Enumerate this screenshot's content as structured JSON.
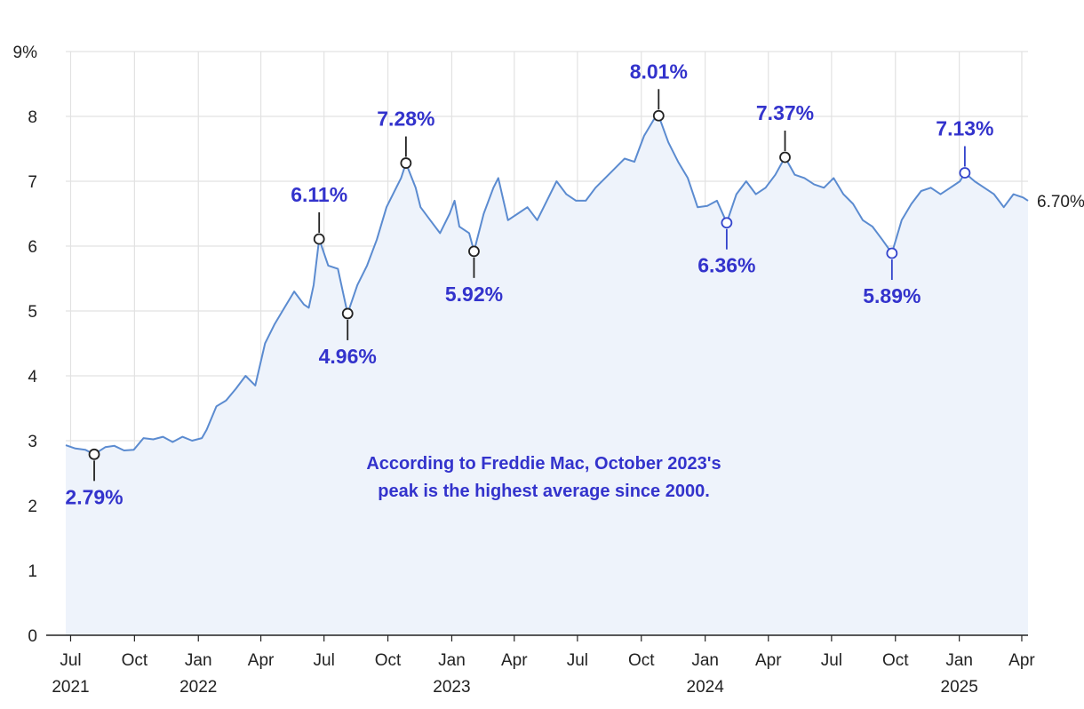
{
  "chart_data": {
    "type": "area",
    "title": "",
    "xlabel": "",
    "ylabel": "",
    "ylim": [
      0,
      9
    ],
    "xlim": [
      "2021-06-24",
      "2025-04-10"
    ],
    "y_ticks": [
      {
        "value": 0,
        "label": "0"
      },
      {
        "value": 1,
        "label": "1"
      },
      {
        "value": 2,
        "label": "2"
      },
      {
        "value": 3,
        "label": "3"
      },
      {
        "value": 4,
        "label": "4"
      },
      {
        "value": 5,
        "label": "5"
      },
      {
        "value": 6,
        "label": "6"
      },
      {
        "value": 7,
        "label": "7"
      },
      {
        "value": 8,
        "label": "8"
      },
      {
        "value": 9,
        "label": "9%"
      }
    ],
    "x_ticks": [
      {
        "date": "2021-07-01",
        "label": "Jul",
        "year": "2021"
      },
      {
        "date": "2021-10-01",
        "label": "Oct",
        "year": ""
      },
      {
        "date": "2022-01-01",
        "label": "Jan",
        "year": "2022"
      },
      {
        "date": "2022-04-01",
        "label": "Apr",
        "year": ""
      },
      {
        "date": "2022-07-01",
        "label": "Jul",
        "year": ""
      },
      {
        "date": "2022-10-01",
        "label": "Oct",
        "year": ""
      },
      {
        "date": "2023-01-01",
        "label": "Jan",
        "year": "2023"
      },
      {
        "date": "2023-04-01",
        "label": "Apr",
        "year": ""
      },
      {
        "date": "2023-07-01",
        "label": "Jul",
        "year": ""
      },
      {
        "date": "2023-10-01",
        "label": "Oct",
        "year": ""
      },
      {
        "date": "2024-01-01",
        "label": "Jan",
        "year": "2024"
      },
      {
        "date": "2024-04-01",
        "label": "Apr",
        "year": ""
      },
      {
        "date": "2024-07-01",
        "label": "Jul",
        "year": ""
      },
      {
        "date": "2024-10-01",
        "label": "Oct",
        "year": ""
      },
      {
        "date": "2025-01-01",
        "label": "Jan",
        "year": "2025"
      },
      {
        "date": "2025-04-01",
        "label": "Apr",
        "year": ""
      }
    ],
    "grid": true,
    "series": [
      {
        "points": [
          [
            "2021-06-24",
            2.93
          ],
          [
            "2021-07-08",
            2.88
          ],
          [
            "2021-07-22",
            2.86
          ],
          [
            "2021-08-04",
            2.79
          ],
          [
            "2021-08-20",
            2.9
          ],
          [
            "2021-09-02",
            2.92
          ],
          [
            "2021-09-16",
            2.85
          ],
          [
            "2021-09-30",
            2.86
          ],
          [
            "2021-10-14",
            3.04
          ],
          [
            "2021-10-28",
            3.02
          ],
          [
            "2021-11-11",
            3.06
          ],
          [
            "2021-11-25",
            2.98
          ],
          [
            "2021-12-09",
            3.06
          ],
          [
            "2021-12-23",
            3.0
          ],
          [
            "2022-01-06",
            3.04
          ],
          [
            "2022-01-13",
            3.17
          ],
          [
            "2022-01-27",
            3.53
          ],
          [
            "2022-02-10",
            3.62
          ],
          [
            "2022-02-24",
            3.8
          ],
          [
            "2022-03-10",
            4.0
          ],
          [
            "2022-03-24",
            3.85
          ],
          [
            "2022-04-07",
            4.5
          ],
          [
            "2022-04-21",
            4.8
          ],
          [
            "2022-05-05",
            5.05
          ],
          [
            "2022-05-19",
            5.3
          ],
          [
            "2022-06-02",
            5.1
          ],
          [
            "2022-06-09",
            5.05
          ],
          [
            "2022-06-16",
            5.4
          ],
          [
            "2022-06-24",
            6.11
          ],
          [
            "2022-07-07",
            5.7
          ],
          [
            "2022-07-21",
            5.65
          ],
          [
            "2022-07-28",
            5.3
          ],
          [
            "2022-08-04",
            4.96
          ],
          [
            "2022-08-18",
            5.4
          ],
          [
            "2022-09-01",
            5.7
          ],
          [
            "2022-09-15",
            6.1
          ],
          [
            "2022-09-29",
            6.6
          ],
          [
            "2022-10-13",
            6.9
          ],
          [
            "2022-10-20",
            7.05
          ],
          [
            "2022-10-27",
            7.28
          ],
          [
            "2022-11-10",
            6.9
          ],
          [
            "2022-11-17",
            6.6
          ],
          [
            "2022-12-01",
            6.4
          ],
          [
            "2022-12-15",
            6.2
          ],
          [
            "2022-12-29",
            6.5
          ],
          [
            "2023-01-05",
            6.7
          ],
          [
            "2023-01-12",
            6.3
          ],
          [
            "2023-01-26",
            6.2
          ],
          [
            "2023-02-02",
            5.92
          ],
          [
            "2023-02-16",
            6.5
          ],
          [
            "2023-03-02",
            6.9
          ],
          [
            "2023-03-09",
            7.05
          ],
          [
            "2023-03-23",
            6.4
          ],
          [
            "2023-04-06",
            6.5
          ],
          [
            "2023-04-20",
            6.6
          ],
          [
            "2023-05-04",
            6.4
          ],
          [
            "2023-05-18",
            6.7
          ],
          [
            "2023-06-01",
            7.0
          ],
          [
            "2023-06-15",
            6.8
          ],
          [
            "2023-06-29",
            6.7
          ],
          [
            "2023-07-13",
            6.7
          ],
          [
            "2023-07-27",
            6.9
          ],
          [
            "2023-08-10",
            7.05
          ],
          [
            "2023-08-24",
            7.2
          ],
          [
            "2023-09-07",
            7.35
          ],
          [
            "2023-09-21",
            7.3
          ],
          [
            "2023-09-28",
            7.5
          ],
          [
            "2023-10-05",
            7.7
          ],
          [
            "2023-10-19",
            7.95
          ],
          [
            "2023-10-26",
            8.01
          ],
          [
            "2023-11-09",
            7.6
          ],
          [
            "2023-11-23",
            7.3
          ],
          [
            "2023-12-07",
            7.05
          ],
          [
            "2023-12-21",
            6.6
          ],
          [
            "2024-01-04",
            6.62
          ],
          [
            "2024-01-18",
            6.7
          ],
          [
            "2024-02-01",
            6.36
          ],
          [
            "2024-02-15",
            6.8
          ],
          [
            "2024-02-29",
            7.0
          ],
          [
            "2024-03-14",
            6.8
          ],
          [
            "2024-03-28",
            6.9
          ],
          [
            "2024-04-11",
            7.1
          ],
          [
            "2024-04-25",
            7.37
          ],
          [
            "2024-05-09",
            7.1
          ],
          [
            "2024-05-23",
            7.05
          ],
          [
            "2024-06-06",
            6.95
          ],
          [
            "2024-06-20",
            6.9
          ],
          [
            "2024-07-04",
            7.05
          ],
          [
            "2024-07-18",
            6.8
          ],
          [
            "2024-08-01",
            6.65
          ],
          [
            "2024-08-15",
            6.4
          ],
          [
            "2024-08-29",
            6.3
          ],
          [
            "2024-09-12",
            6.1
          ],
          [
            "2024-09-26",
            5.89
          ],
          [
            "2024-10-10",
            6.4
          ],
          [
            "2024-10-24",
            6.65
          ],
          [
            "2024-11-07",
            6.85
          ],
          [
            "2024-11-21",
            6.9
          ],
          [
            "2024-12-05",
            6.8
          ],
          [
            "2024-12-19",
            6.9
          ],
          [
            "2025-01-02",
            7.0
          ],
          [
            "2025-01-09",
            7.13
          ],
          [
            "2025-01-23",
            7.0
          ],
          [
            "2025-02-06",
            6.9
          ],
          [
            "2025-02-20",
            6.8
          ],
          [
            "2025-03-06",
            6.6
          ],
          [
            "2025-03-20",
            6.8
          ],
          [
            "2025-04-03",
            6.75
          ],
          [
            "2025-04-10",
            6.7
          ]
        ]
      }
    ],
    "annotations": [
      {
        "date": "2021-08-04",
        "value": 2.79,
        "label": "2.79%",
        "dir": "below",
        "color": "#222222"
      },
      {
        "date": "2022-06-24",
        "value": 6.11,
        "label": "6.11%",
        "dir": "above",
        "color": "#222222"
      },
      {
        "date": "2022-08-04",
        "value": 4.96,
        "label": "4.96%",
        "dir": "below",
        "color": "#222222"
      },
      {
        "date": "2022-10-27",
        "value": 7.28,
        "label": "7.28%",
        "dir": "above",
        "color": "#222222"
      },
      {
        "date": "2023-02-02",
        "value": 5.92,
        "label": "5.92%",
        "dir": "below",
        "color": "#222222"
      },
      {
        "date": "2023-10-26",
        "value": 8.01,
        "label": "8.01%",
        "dir": "above",
        "color": "#222222"
      },
      {
        "date": "2024-02-01",
        "value": 6.36,
        "label": "6.36%",
        "dir": "below",
        "color": "#3344cc"
      },
      {
        "date": "2024-04-25",
        "value": 7.37,
        "label": "7.37%",
        "dir": "above",
        "color": "#222222"
      },
      {
        "date": "2024-09-26",
        "value": 5.89,
        "label": "5.89%",
        "dir": "below",
        "color": "#3344cc"
      },
      {
        "date": "2025-01-09",
        "value": 7.13,
        "label": "7.13%",
        "dir": "above",
        "color": "#3344cc"
      }
    ],
    "end_label": "6.70%",
    "note_lines": [
      "According to Freddie Mac, October 2023's",
      "peak is the highest average since 2000."
    ],
    "colors": {
      "line": "#5b8bd0",
      "area": "#eef3fb",
      "annotation_text": "#3333cc"
    }
  }
}
